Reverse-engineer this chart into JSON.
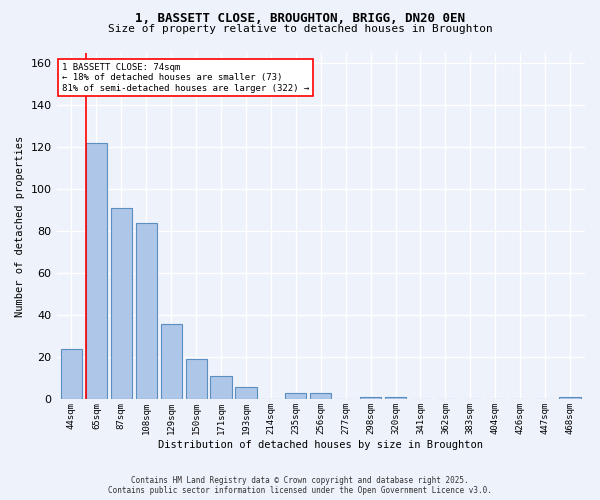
{
  "title1": "1, BASSETT CLOSE, BROUGHTON, BRIGG, DN20 0EN",
  "title2": "Size of property relative to detached houses in Broughton",
  "xlabel": "Distribution of detached houses by size in Broughton",
  "ylabel": "Number of detached properties",
  "categories": [
    "44sqm",
    "65sqm",
    "87sqm",
    "108sqm",
    "129sqm",
    "150sqm",
    "171sqm",
    "193sqm",
    "214sqm",
    "235sqm",
    "256sqm",
    "277sqm",
    "298sqm",
    "320sqm",
    "341sqm",
    "362sqm",
    "383sqm",
    "404sqm",
    "426sqm",
    "447sqm",
    "468sqm"
  ],
  "values": [
    24,
    122,
    91,
    84,
    36,
    19,
    11,
    6,
    0,
    3,
    3,
    0,
    1,
    1,
    0,
    0,
    0,
    0,
    0,
    0,
    1
  ],
  "bar_color": "#aec6e8",
  "bar_edge_color": "#5a8fc2",
  "red_line_x": 0.575,
  "annotation_text": "1 BASSETT CLOSE: 74sqm\n← 18% of detached houses are smaller (73)\n81% of semi-detached houses are larger (322) →",
  "annotation_box_color": "white",
  "annotation_box_edge": "red",
  "ylim": [
    0,
    165
  ],
  "yticks": [
    0,
    20,
    40,
    60,
    80,
    100,
    120,
    140,
    160
  ],
  "footer1": "Contains HM Land Registry data © Crown copyright and database right 2025.",
  "footer2": "Contains public sector information licensed under the Open Government Licence v3.0.",
  "bg_color": "#eef2fb",
  "plot_bg_color": "#eef2fb"
}
